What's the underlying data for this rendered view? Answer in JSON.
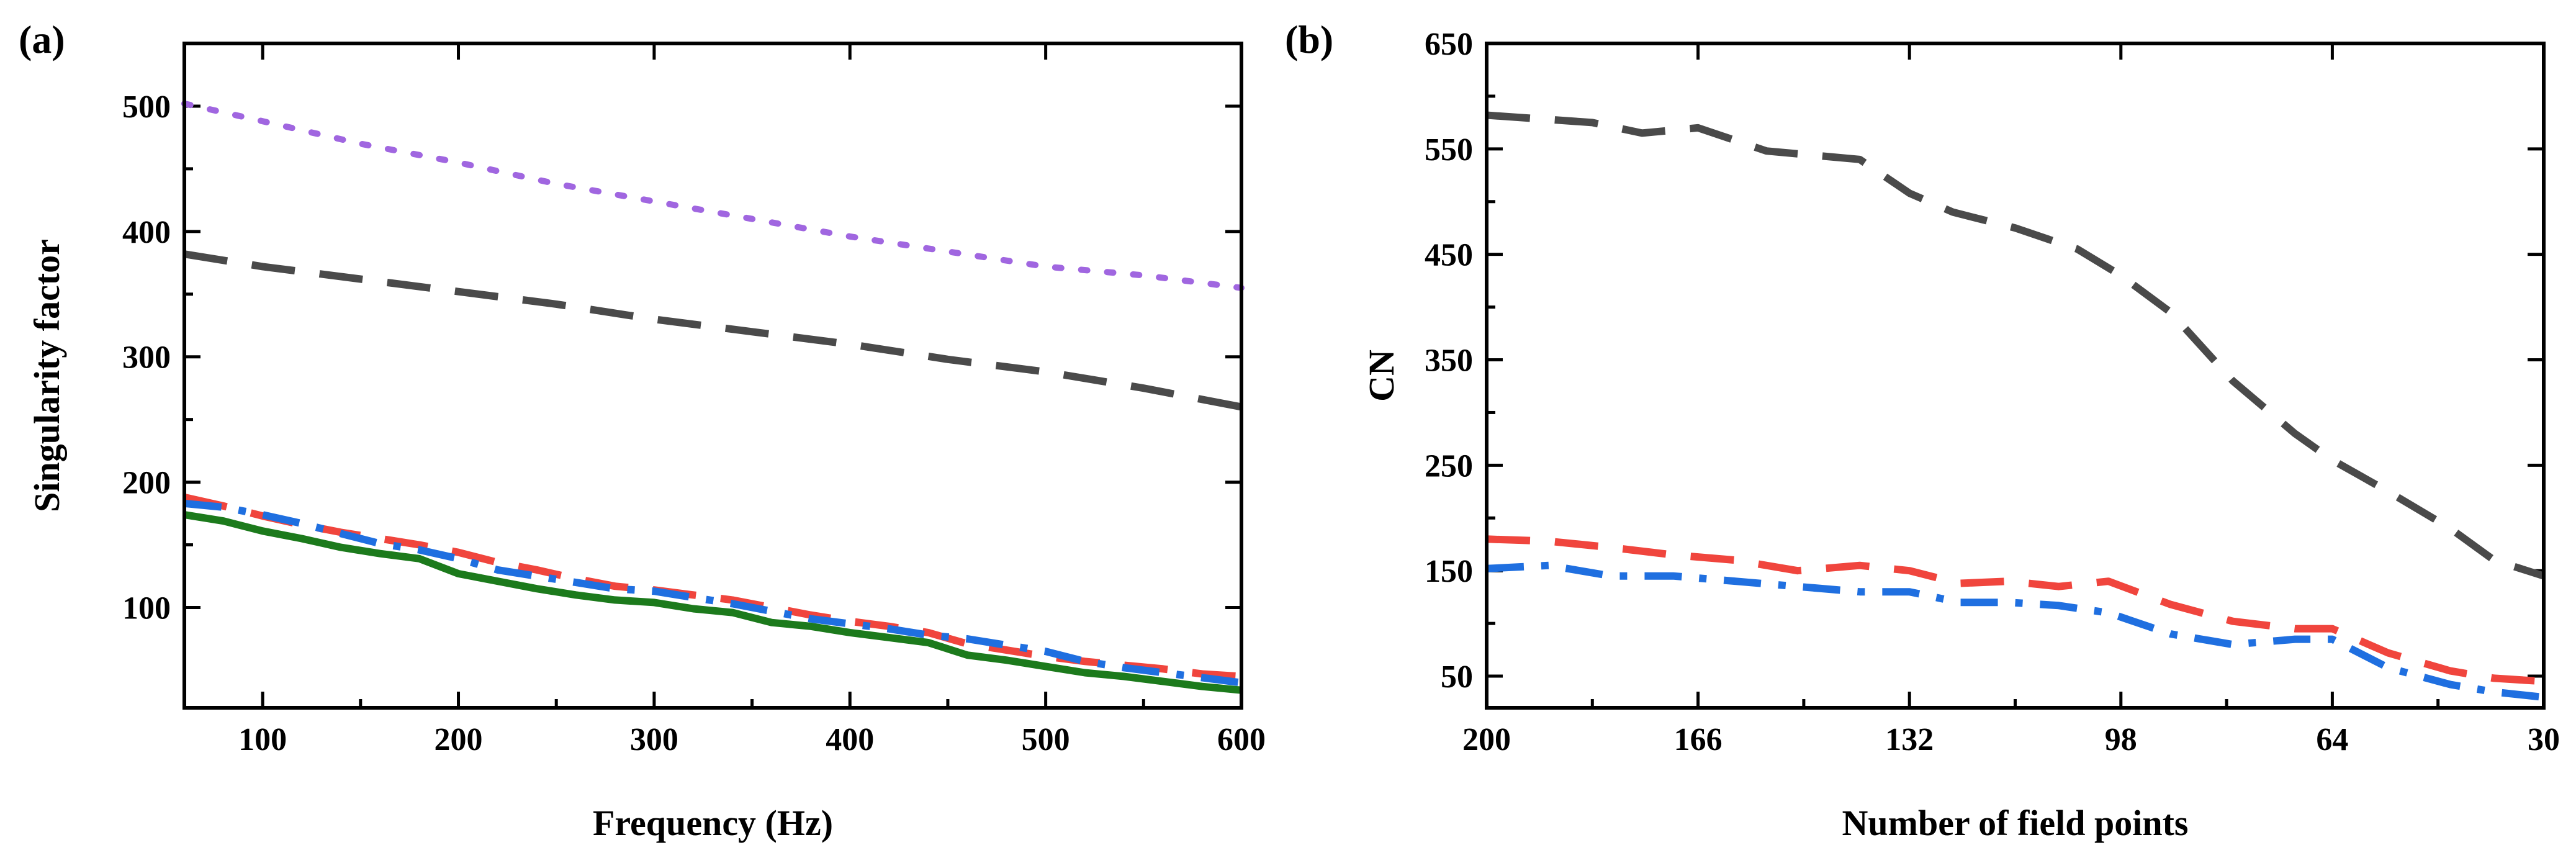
{
  "chart_data": [
    {
      "panel_label": "(a)",
      "type": "line",
      "xlabel": "Frequency (Hz)",
      "ylabel": "Singularity factor",
      "xlim": [
        60,
        600
      ],
      "ylim": [
        20,
        550
      ],
      "x_ticks": [
        100,
        200,
        300,
        400,
        500,
        600
      ],
      "x_tick_labels": [
        "100",
        "200",
        "300",
        "400",
        "500",
        "600"
      ],
      "y_ticks": [
        100,
        200,
        300,
        400,
        500
      ],
      "y_tick_labels": [
        "100",
        "200",
        "300",
        "400",
        "500"
      ],
      "grid": false,
      "series": [
        {
          "name": "purple-dotted",
          "color": "#a066e0",
          "dash": "dotted",
          "x": [
            60,
            100,
            150,
            200,
            250,
            300,
            350,
            400,
            450,
            500,
            550,
            600
          ],
          "y": [
            502,
            488,
            470,
            455,
            438,
            424,
            410,
            396,
            384,
            372,
            365,
            355
          ]
        },
        {
          "name": "gray-dashed",
          "color": "#4a4a4a",
          "dash": "dashed",
          "x": [
            60,
            100,
            150,
            200,
            250,
            300,
            350,
            400,
            450,
            500,
            550,
            600
          ],
          "y": [
            382,
            372,
            362,
            352,
            342,
            330,
            320,
            310,
            298,
            288,
            275,
            260
          ]
        },
        {
          "name": "red-dashed",
          "color": "#f0453d",
          "dash": "dashed",
          "x": [
            60,
            80,
            100,
            120,
            140,
            160,
            180,
            200,
            220,
            240,
            260,
            280,
            300,
            320,
            340,
            360,
            380,
            400,
            420,
            440,
            460,
            480,
            500,
            520,
            540,
            560,
            580,
            600
          ],
          "y": [
            188,
            181,
            173,
            166,
            160,
            155,
            150,
            144,
            136,
            130,
            123,
            117,
            114,
            110,
            106,
            100,
            94,
            89,
            85,
            80,
            71,
            66,
            61,
            57,
            54,
            51,
            47,
            45
          ]
        },
        {
          "name": "blue-dashdot",
          "color": "#1f6fe0",
          "dash": "dashdot",
          "x": [
            60,
            80,
            100,
            120,
            140,
            160,
            180,
            200,
            220,
            240,
            260,
            280,
            300,
            320,
            340,
            360,
            380,
            400,
            420,
            440,
            460,
            480,
            500,
            520,
            540,
            560,
            580,
            600
          ],
          "y": [
            183,
            180,
            174,
            167,
            159,
            151,
            146,
            139,
            130,
            125,
            120,
            115,
            113,
            108,
            103,
            97,
            91,
            87,
            83,
            78,
            75,
            70,
            65,
            57,
            52,
            48,
            44,
            40
          ]
        },
        {
          "name": "green-solid",
          "color": "#1c7a1c",
          "dash": "solid",
          "x": [
            60,
            80,
            100,
            120,
            140,
            160,
            180,
            200,
            220,
            240,
            260,
            280,
            300,
            320,
            340,
            360,
            380,
            400,
            420,
            440,
            460,
            480,
            500,
            520,
            540,
            560,
            580,
            600
          ],
          "y": [
            174,
            169,
            161,
            155,
            148,
            143,
            139,
            127,
            121,
            115,
            110,
            106,
            104,
            99,
            96,
            88,
            85,
            80,
            76,
            72,
            62,
            58,
            53,
            48,
            45,
            41,
            37,
            34
          ]
        }
      ]
    },
    {
      "panel_label": "(b)",
      "type": "line",
      "xlabel": "Number of field points",
      "ylabel": "CN",
      "xlim": [
        200,
        30
      ],
      "ylim": [
        20,
        650
      ],
      "x_ticks": [
        200,
        166,
        132,
        98,
        64,
        30
      ],
      "x_tick_labels": [
        "200",
        "166",
        "132",
        "98",
        "64",
        "30"
      ],
      "y_ticks": [
        50,
        150,
        250,
        350,
        450,
        550,
        650
      ],
      "y_tick_labels": [
        "50",
        "150",
        "250",
        "350",
        "450",
        "550",
        "650"
      ],
      "grid": false,
      "series": [
        {
          "name": "gray-dashed",
          "color": "#4a4a4a",
          "dash": "dashed",
          "x": [
            200,
            183,
            175,
            166,
            155,
            140,
            132,
            125,
            115,
            105,
            98,
            90,
            80,
            70,
            64,
            55,
            45,
            38,
            30
          ],
          "y": [
            582,
            575,
            565,
            570,
            548,
            540,
            508,
            490,
            475,
            455,
            430,
            395,
            330,
            280,
            255,
            225,
            190,
            160,
            145
          ]
        },
        {
          "name": "red-dashed",
          "color": "#f0453d",
          "dash": "dashed",
          "x": [
            200,
            190,
            180,
            170,
            160,
            150,
            140,
            132,
            124,
            116,
            108,
            100,
            90,
            80,
            70,
            64,
            55,
            45,
            38,
            30
          ],
          "y": [
            180,
            178,
            172,
            165,
            160,
            150,
            155,
            150,
            138,
            140,
            135,
            140,
            118,
            102,
            95,
            95,
            72,
            55,
            48,
            45
          ]
        },
        {
          "name": "blue-dashdot",
          "color": "#1f6fe0",
          "dash": "dashdot",
          "x": [
            200,
            190,
            180,
            170,
            160,
            150,
            140,
            132,
            124,
            116,
            108,
            100,
            90,
            80,
            70,
            64,
            55,
            45,
            38,
            30
          ],
          "y": [
            152,
            155,
            145,
            145,
            140,
            135,
            130,
            130,
            120,
            120,
            117,
            110,
            90,
            80,
            85,
            85,
            58,
            42,
            35,
            30
          ]
        }
      ]
    }
  ]
}
